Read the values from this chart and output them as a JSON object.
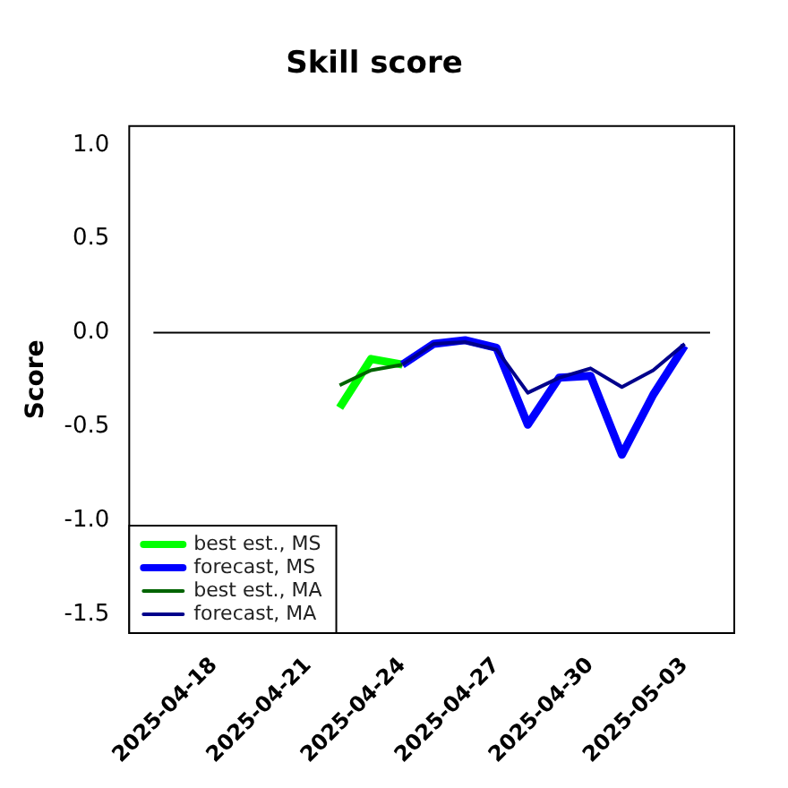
{
  "chart_data": {
    "type": "line",
    "title": "Skill score",
    "ylabel": "Score",
    "x": [
      "2025-04-22",
      "2025-04-23",
      "2025-04-24",
      "2025-04-25",
      "2025-04-26",
      "2025-04-27",
      "2025-04-28",
      "2025-04-29",
      "2025-04-30",
      "2025-05-01",
      "2025-05-02",
      "2025-05-03"
    ],
    "series": [
      {
        "name": "best est., MS",
        "color": "#00ff00",
        "values": [
          -0.4,
          -0.14,
          -0.17,
          null,
          null,
          null,
          null,
          null,
          null,
          null,
          null,
          null
        ]
      },
      {
        "name": "forecast, MS",
        "color": "#0000ff",
        "values": [
          null,
          null,
          -0.17,
          -0.06,
          -0.04,
          -0.08,
          -0.49,
          -0.24,
          -0.23,
          -0.65,
          -0.33,
          -0.07
        ]
      },
      {
        "name": "best est., MA",
        "color": "#006400",
        "values": [
          -0.28,
          -0.2,
          -0.17,
          null,
          null,
          null,
          null,
          null,
          null,
          null,
          null,
          null
        ]
      },
      {
        "name": "forecast, MA",
        "color": "#00008b",
        "values": [
          null,
          null,
          -0.17,
          -0.06,
          -0.05,
          -0.09,
          -0.32,
          -0.24,
          -0.19,
          -0.29,
          -0.2,
          -0.06
        ]
      }
    ],
    "xlim": [
      "2025-04-15T07:00",
      "2025-05-04T14:00"
    ],
    "xticks": [
      "2025-04-18",
      "2025-04-21",
      "2025-04-24",
      "2025-04-27",
      "2025-04-30",
      "2025-05-03"
    ],
    "ylim": [
      -1.6,
      1.1
    ],
    "yticks": [
      {
        "value": -1.5,
        "label": "-1.5"
      },
      {
        "value": -1,
        "label": "-1.0"
      },
      {
        "value": -0.5,
        "label": "-0.5"
      },
      {
        "value": 0,
        "label": "0.0"
      },
      {
        "value": 0.5,
        "label": "0.5"
      },
      {
        "value": 1,
        "label": "1.0"
      }
    ],
    "ref_lines": [
      {
        "axis": "y",
        "value": 0,
        "color": "#000000"
      }
    ],
    "grid": false,
    "legend": "bottom left",
    "marker": "none",
    "line_style": "solid"
  }
}
